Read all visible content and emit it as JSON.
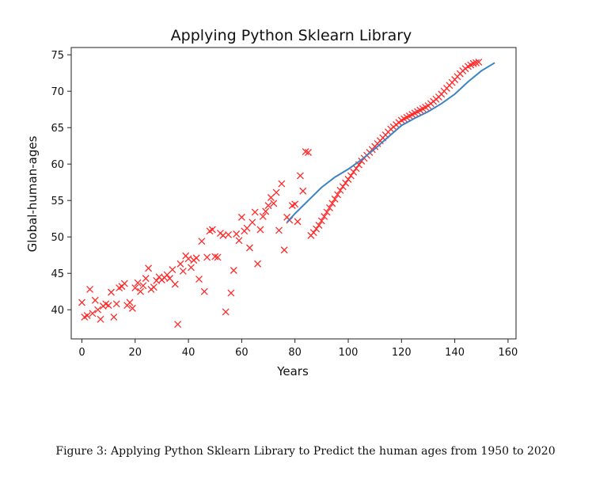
{
  "caption": "Figure 3:  Applying Python Sklearn Library to Predict the human ages from 1950 to 2020",
  "chart_data": {
    "type": "scatter",
    "title": "Applying Python Sklearn Library",
    "xlabel": "Years",
    "ylabel": "Global-human-ages",
    "xlim": [
      -4,
      163
    ],
    "ylim": [
      36,
      76
    ],
    "x_ticks": [
      "0",
      "20",
      "40",
      "60",
      "80",
      "100",
      "120",
      "140",
      "160"
    ],
    "y_ticks": [
      "40",
      "45",
      "50",
      "55",
      "60",
      "65",
      "70",
      "75"
    ],
    "grid": false,
    "colors": {
      "marker": "#ff2a2a",
      "line": "#3b84c4"
    },
    "series": [
      {
        "kind": "scatter",
        "marker": "x",
        "points": [
          [
            0,
            41
          ],
          [
            1,
            39
          ],
          [
            2,
            39.2
          ],
          [
            3,
            42.8
          ],
          [
            4,
            39.5
          ],
          [
            5,
            41.3
          ],
          [
            6,
            40
          ],
          [
            7,
            38.7
          ],
          [
            8,
            40.5
          ],
          [
            9,
            40.8
          ],
          [
            10,
            40.6
          ],
          [
            11,
            42.4
          ],
          [
            12,
            39
          ],
          [
            13,
            40.8
          ],
          [
            14,
            43
          ],
          [
            15,
            43.2
          ],
          [
            16,
            43.6
          ],
          [
            17,
            40.6
          ],
          [
            18,
            41
          ],
          [
            19,
            40.2
          ],
          [
            20,
            43
          ],
          [
            21,
            43.7
          ],
          [
            22,
            42.5
          ],
          [
            23,
            43.3
          ],
          [
            24,
            44.3
          ],
          [
            25,
            45.7
          ],
          [
            26,
            42.8
          ],
          [
            27,
            43.1
          ],
          [
            28,
            44
          ],
          [
            29,
            44.5
          ],
          [
            30,
            44.1
          ],
          [
            31,
            44.4
          ],
          [
            32,
            44.8
          ],
          [
            33,
            44.3
          ],
          [
            34,
            45.5
          ],
          [
            35,
            43.5
          ],
          [
            36,
            38
          ],
          [
            37,
            46.3
          ],
          [
            38,
            45.3
          ],
          [
            39,
            47.4
          ],
          [
            40,
            47
          ],
          [
            41,
            45.8
          ],
          [
            42,
            46.8
          ],
          [
            43,
            47.1
          ],
          [
            44,
            44.2
          ],
          [
            45,
            49.4
          ],
          [
            46,
            42.5
          ],
          [
            47,
            47.2
          ],
          [
            48,
            50.8
          ],
          [
            49,
            51
          ],
          [
            50,
            47.3
          ],
          [
            51,
            47.2
          ],
          [
            52,
            50.5
          ],
          [
            53,
            50.2
          ],
          [
            54,
            39.7
          ],
          [
            55,
            50.3
          ],
          [
            56,
            42.3
          ],
          [
            57,
            45.4
          ],
          [
            58,
            50.4
          ],
          [
            59,
            49.5
          ],
          [
            60,
            52.7
          ],
          [
            61,
            50.8
          ],
          [
            62,
            51.2
          ],
          [
            63,
            48.5
          ],
          [
            64,
            52
          ],
          [
            65,
            53.4
          ],
          [
            66,
            46.3
          ],
          [
            67,
            51
          ],
          [
            68,
            52.8
          ],
          [
            69,
            53.5
          ],
          [
            70,
            54.3
          ],
          [
            71,
            55.4
          ],
          [
            72,
            54.6
          ],
          [
            73,
            56.1
          ],
          [
            74,
            50.9
          ],
          [
            75,
            57.3
          ],
          [
            76,
            48.2
          ],
          [
            77,
            52.7
          ],
          [
            78,
            52.3
          ],
          [
            79,
            54.3
          ],
          [
            80,
            54.5
          ],
          [
            81,
            52.1
          ],
          [
            82,
            58.4
          ],
          [
            83,
            56.3
          ],
          [
            84,
            61.7
          ],
          [
            85,
            61.6
          ],
          [
            86,
            50.2
          ],
          [
            87,
            50.6
          ],
          [
            88,
            51.1
          ],
          [
            89,
            51.6
          ],
          [
            90,
            52.2
          ],
          [
            91,
            52.8
          ],
          [
            92,
            53.4
          ],
          [
            93,
            54
          ],
          [
            94,
            54.6
          ],
          [
            95,
            55.2
          ],
          [
            96,
            55.8
          ],
          [
            97,
            56.4
          ],
          [
            98,
            56.9
          ],
          [
            99,
            57.4
          ],
          [
            100,
            57.9
          ],
          [
            101,
            58.4
          ],
          [
            102,
            58.9
          ],
          [
            103,
            59.4
          ],
          [
            104,
            59.9
          ],
          [
            105,
            60.4
          ],
          [
            106,
            60.8
          ],
          [
            107,
            61.2
          ],
          [
            108,
            61.6
          ],
          [
            109,
            62
          ],
          [
            110,
            62.4
          ],
          [
            111,
            62.8
          ],
          [
            112,
            63.2
          ],
          [
            113,
            63.6
          ],
          [
            114,
            64
          ],
          [
            115,
            64.4
          ],
          [
            116,
            64.8
          ],
          [
            117,
            65.1
          ],
          [
            118,
            65.4
          ],
          [
            119,
            65.7
          ],
          [
            120,
            66
          ],
          [
            121,
            66.2
          ],
          [
            122,
            66.4
          ],
          [
            123,
            66.6
          ],
          [
            124,
            66.8
          ],
          [
            125,
            67
          ],
          [
            126,
            67.2
          ],
          [
            127,
            67.4
          ],
          [
            128,
            67.6
          ],
          [
            129,
            67.8
          ],
          [
            130,
            68
          ],
          [
            131,
            68.3
          ],
          [
            132,
            68.6
          ],
          [
            133,
            68.9
          ],
          [
            134,
            69.2
          ],
          [
            135,
            69.6
          ],
          [
            136,
            70
          ],
          [
            137,
            70.4
          ],
          [
            138,
            70.8
          ],
          [
            139,
            71.2
          ],
          [
            140,
            71.6
          ],
          [
            141,
            72
          ],
          [
            142,
            72.4
          ],
          [
            143,
            72.8
          ],
          [
            144,
            73.1
          ],
          [
            145,
            73.4
          ],
          [
            146,
            73.6
          ],
          [
            147,
            73.8
          ],
          [
            148,
            73.9
          ],
          [
            149,
            74
          ]
        ]
      },
      {
        "kind": "line",
        "points": [
          [
            77,
            52
          ],
          [
            80,
            53.2
          ],
          [
            85,
            55
          ],
          [
            90,
            56.8
          ],
          [
            95,
            58.2
          ],
          [
            100,
            59.3
          ],
          [
            105,
            60.6
          ],
          [
            110,
            62.1
          ],
          [
            115,
            63.7
          ],
          [
            120,
            65.3
          ],
          [
            125,
            66.3
          ],
          [
            130,
            67.2
          ],
          [
            135,
            68.3
          ],
          [
            140,
            69.6
          ],
          [
            145,
            71.3
          ],
          [
            150,
            72.8
          ],
          [
            155,
            73.9
          ]
        ]
      }
    ]
  }
}
